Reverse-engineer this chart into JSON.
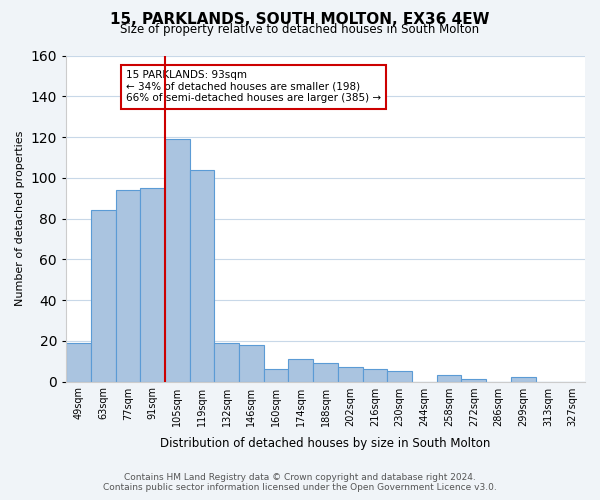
{
  "title": "15, PARKLANDS, SOUTH MOLTON, EX36 4EW",
  "subtitle": "Size of property relative to detached houses in South Molton",
  "xlabel": "Distribution of detached houses by size in South Molton",
  "ylabel": "Number of detached properties",
  "bar_labels": [
    "49sqm",
    "63sqm",
    "77sqm",
    "91sqm",
    "105sqm",
    "119sqm",
    "132sqm",
    "146sqm",
    "160sqm",
    "174sqm",
    "188sqm",
    "202sqm",
    "216sqm",
    "230sqm",
    "244sqm",
    "258sqm",
    "272sqm",
    "286sqm",
    "299sqm",
    "313sqm",
    "327sqm"
  ],
  "bar_values": [
    19,
    84,
    94,
    95,
    119,
    104,
    19,
    18,
    6,
    11,
    9,
    7,
    6,
    5,
    0,
    3,
    1,
    0,
    2,
    0,
    0
  ],
  "bar_color": "#aac4e0",
  "bar_edge_color": "#5b9bd5",
  "vline_x": 3.5,
  "vline_color": "#cc0000",
  "annotation_line1": "15 PARKLANDS: 93sqm",
  "annotation_line2": "← 34% of detached houses are smaller (198)",
  "annotation_line3": "66% of semi-detached houses are larger (385) →",
  "ylim": [
    0,
    160
  ],
  "yticks": [
    0,
    20,
    40,
    60,
    80,
    100,
    120,
    140,
    160
  ],
  "bg_color": "#f0f4f8",
  "plot_bg_color": "#ffffff",
  "grid_color": "#c8d8e8",
  "footer_line1": "Contains HM Land Registry data © Crown copyright and database right 2024.",
  "footer_line2": "Contains public sector information licensed under the Open Government Licence v3.0."
}
